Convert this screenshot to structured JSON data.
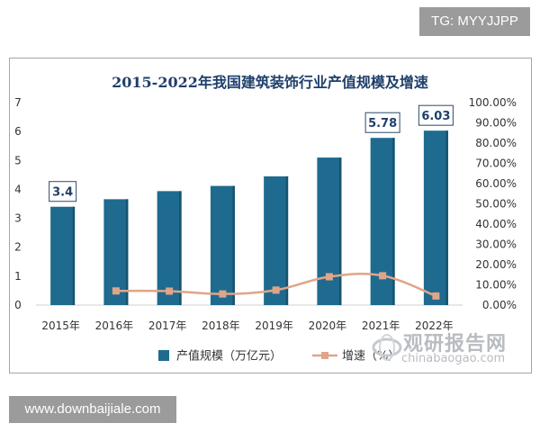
{
  "corner_tag": "TG: MYYJJPP",
  "bottom_tag": "www.downbaijiale.com",
  "watermark": {
    "title": "观研报告网",
    "subtitle": "chinabaogao.com"
  },
  "colors": {
    "bar": "#1f6b8f",
    "line": "#e0a589",
    "title": "#1f3f6b"
  },
  "chart_data": {
    "type": "bar",
    "title": "2015-2022年我国建筑装饰行业产值规模及增速",
    "categories": [
      "2015年",
      "2016年",
      "2017年",
      "2018年",
      "2019年",
      "2020年",
      "2021年",
      "2022年"
    ],
    "series": [
      {
        "name": "产值规模（万亿元）",
        "type": "bar",
        "axis": "left",
        "values": [
          3.4,
          3.66,
          3.94,
          4.12,
          4.45,
          5.1,
          5.78,
          6.03
        ]
      },
      {
        "name": "增速（%）",
        "type": "line",
        "axis": "right",
        "values": [
          null,
          7.0,
          6.9,
          5.5,
          7.4,
          14.0,
          14.5,
          4.5
        ]
      }
    ],
    "data_labels": [
      {
        "index": 0,
        "text": "3.4"
      },
      {
        "index": 6,
        "text": "5.78"
      },
      {
        "index": 7,
        "text": "6.03"
      }
    ],
    "left_axis": {
      "ylim": [
        0,
        7
      ],
      "ticks": [
        "0",
        "1",
        "2",
        "3",
        "4",
        "5",
        "6",
        "7"
      ]
    },
    "right_axis": {
      "ylim": [
        0,
        100
      ],
      "ticks": [
        "0.00%",
        "10.00%",
        "20.00%",
        "30.00%",
        "40.00%",
        "50.00%",
        "60.00%",
        "70.00%",
        "80.00%",
        "90.00%",
        "100.00%"
      ]
    },
    "legend": {
      "position": "bottom-center"
    },
    "grid": false
  }
}
